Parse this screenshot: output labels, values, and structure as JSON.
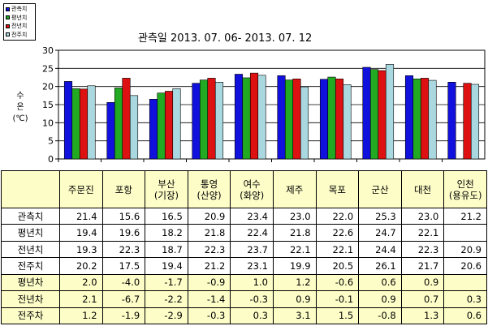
{
  "legend": [
    {
      "label": "관측치",
      "color": "#1111dd"
    },
    {
      "label": "평년치",
      "color": "#22aa22"
    },
    {
      "label": "전년치",
      "color": "#dd1111"
    },
    {
      "label": "전주치",
      "color": "#aad8e0"
    }
  ],
  "chart_data": {
    "type": "bar",
    "title": "관측일 2013. 07. 06-  2013. 07. 12",
    "ylabel": "수\n온\n(℃)",
    "ylim": [
      0,
      30
    ],
    "yticks": [
      0,
      5,
      10,
      15,
      20,
      25,
      30
    ],
    "grid": true,
    "legend_position": "top-left",
    "categories": [
      "주문진",
      "포항",
      "부산(기장)",
      "통영(산양)",
      "여수(화양)",
      "제주",
      "목포",
      "군산",
      "대천",
      "인천(용유도)"
    ],
    "series": [
      {
        "name": "관측치",
        "color": "#1111dd",
        "values": [
          21.4,
          15.6,
          16.5,
          20.9,
          23.4,
          23.0,
          22.0,
          25.3,
          23.0,
          21.2
        ]
      },
      {
        "name": "평년치",
        "color": "#22aa22",
        "values": [
          19.4,
          19.6,
          18.2,
          21.8,
          22.4,
          21.8,
          22.6,
          24.7,
          22.1,
          null
        ]
      },
      {
        "name": "전년치",
        "color": "#dd1111",
        "values": [
          19.3,
          22.3,
          18.7,
          22.3,
          23.7,
          22.1,
          22.1,
          24.4,
          22.3,
          20.9
        ]
      },
      {
        "name": "전주치",
        "color": "#aad8e0",
        "values": [
          20.2,
          17.5,
          19.4,
          21.2,
          23.1,
          19.9,
          20.5,
          26.1,
          21.7,
          20.6
        ]
      }
    ]
  },
  "table": {
    "headers": [
      [
        "주문진"
      ],
      [
        "포항"
      ],
      [
        "부산",
        "(기장)"
      ],
      [
        "통영",
        "(산양)"
      ],
      [
        "여수",
        "(화양)"
      ],
      [
        "제주"
      ],
      [
        "목포"
      ],
      [
        "군산"
      ],
      [
        "대천"
      ],
      [
        "인천",
        "(용유도)"
      ]
    ],
    "rows": [
      {
        "label": "관측치",
        "bold": false,
        "values": [
          "21.4",
          "15.6",
          "16.5",
          "20.9",
          "23.4",
          "23.0",
          "22.0",
          "25.3",
          "23.0",
          "21.2"
        ]
      },
      {
        "label": "평년치",
        "bold": false,
        "values": [
          "19.4",
          "19.6",
          "18.2",
          "21.8",
          "22.4",
          "21.8",
          "22.6",
          "24.7",
          "22.1",
          ""
        ]
      },
      {
        "label": "전년치",
        "bold": false,
        "values": [
          "19.3",
          "22.3",
          "18.7",
          "22.3",
          "23.7",
          "22.1",
          "22.1",
          "24.4",
          "22.3",
          "20.9"
        ]
      },
      {
        "label": "전주치",
        "bold": false,
        "values": [
          "20.2",
          "17.5",
          "19.4",
          "21.2",
          "23.1",
          "19.9",
          "20.5",
          "26.1",
          "21.7",
          "20.6"
        ]
      },
      {
        "label": "평년차",
        "bold": true,
        "values": [
          "2.0",
          "-4.0",
          "-1.7",
          "-0.9",
          "1.0",
          "1.2",
          "-0.6",
          "0.6",
          "0.9",
          ""
        ]
      },
      {
        "label": "전년차",
        "bold": true,
        "values": [
          "2.1",
          "-6.7",
          "-2.2",
          "-1.4",
          "-0.3",
          "0.9",
          "-0.1",
          "0.9",
          "0.7",
          "0.3"
        ]
      },
      {
        "label": "전주차",
        "bold": true,
        "values": [
          "1.2",
          "-1.9",
          "-2.9",
          "-0.3",
          "0.3",
          "3.1",
          "1.5",
          "-0.8",
          "1.3",
          "0.6"
        ]
      }
    ]
  }
}
